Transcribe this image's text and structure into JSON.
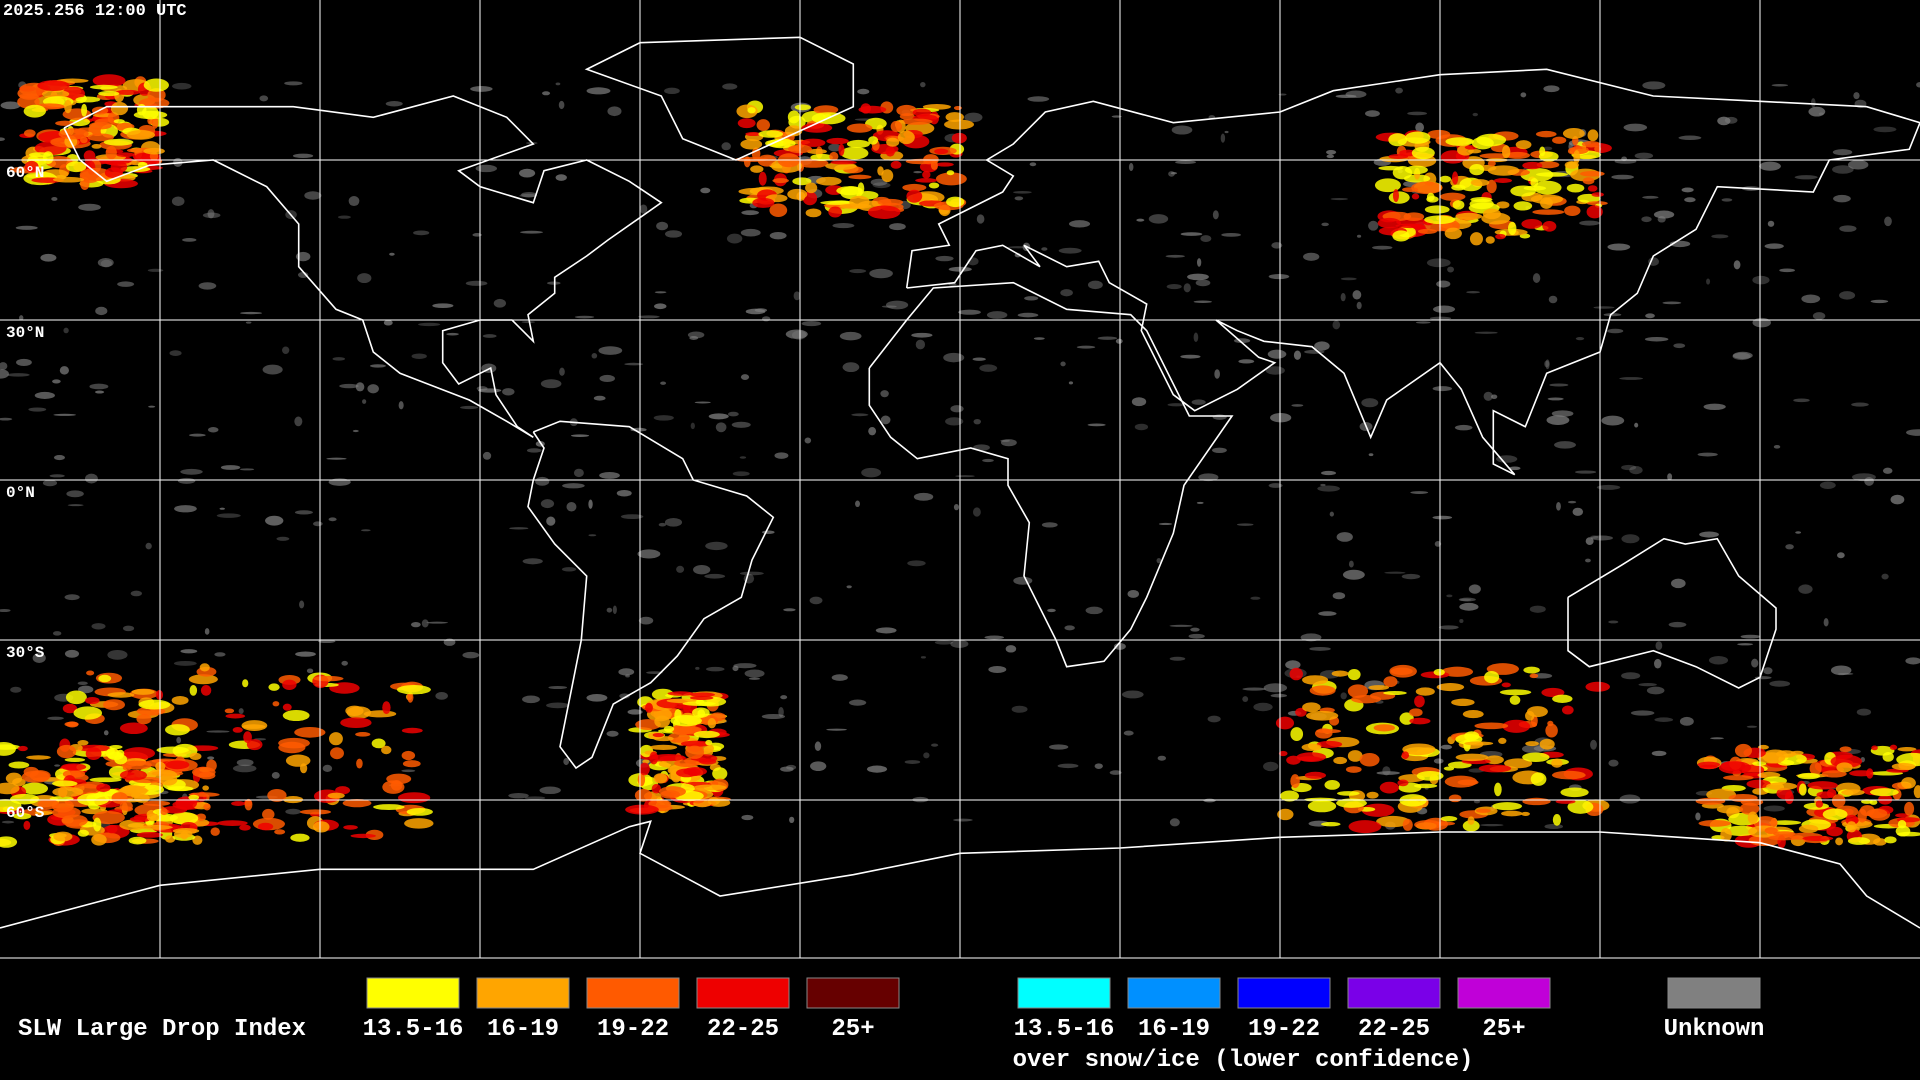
{
  "timestamp": "2025.256 12:00 UTC",
  "latitude_labels": [
    "60°N",
    "30°N",
    "0°N",
    "30°S",
    "60°S"
  ],
  "legend": {
    "title": "SLW Large Drop Index",
    "normal": [
      {
        "label": "13.5-16",
        "color": "#ffff00"
      },
      {
        "label": "16-19",
        "color": "#ffa500"
      },
      {
        "label": "19-22",
        "color": "#ff5a00"
      },
      {
        "label": "22-25",
        "color": "#ee0000"
      },
      {
        "label": "25+",
        "color": "#660000"
      }
    ],
    "snow_ice": [
      {
        "label": "13.5-16",
        "color": "#00ffff"
      },
      {
        "label": "16-19",
        "color": "#0090ff"
      },
      {
        "label": "19-22",
        "color": "#0000ff"
      },
      {
        "label": "22-25",
        "color": "#7a00e8"
      },
      {
        "label": "25+",
        "color": "#c000d8"
      }
    ],
    "snow_ice_caption": "over snow/ice (lower confidence)",
    "unknown": {
      "label": "Unknown",
      "color": "#808080"
    }
  }
}
